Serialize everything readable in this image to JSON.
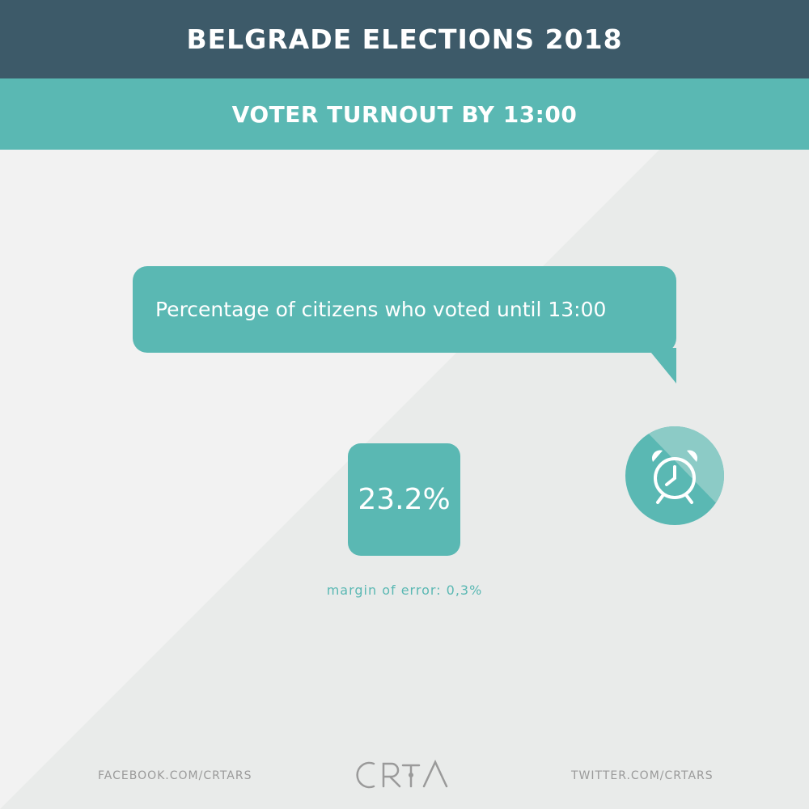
{
  "header": {
    "title": "BELGRADE ELECTIONS 2018"
  },
  "subheader": {
    "title": "VOTER TURNOUT BY 13:00"
  },
  "bubble": {
    "text": "Percentage of citizens who voted until 13:00"
  },
  "turnout": {
    "value": "23.2%",
    "margin_of_error": "margin of error: 0,3%"
  },
  "icon": {
    "name": "alarm-clock-icon"
  },
  "footer": {
    "left": "FACEBOOK.COM/CRTARS",
    "right": "TWITTER.COM/CRTARS",
    "logo": "CRTA"
  },
  "colors": {
    "header_bg": "#3d5a69",
    "accent": "#5ab8b3",
    "background": "#f2f2f2",
    "background_shade": "#e9ebea",
    "footer_text": "#9a9a9a"
  }
}
